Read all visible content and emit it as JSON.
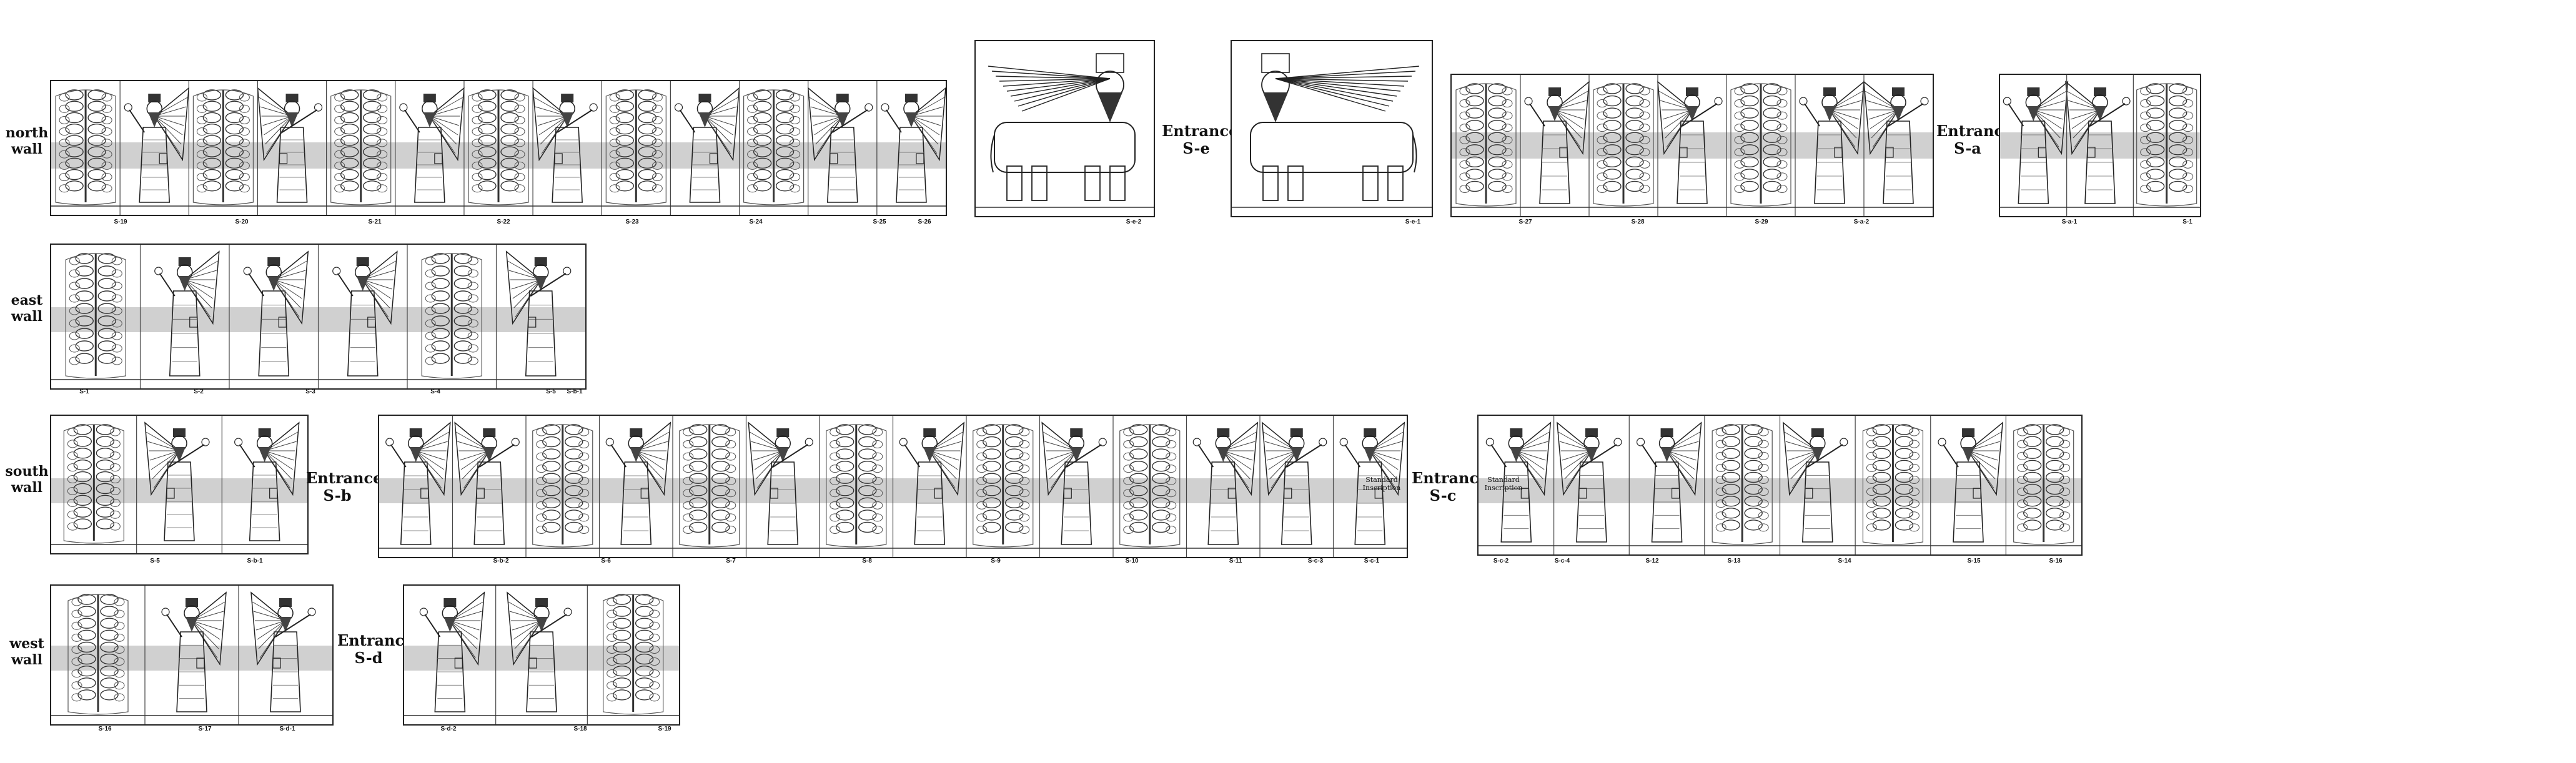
{
  "walls": [
    {
      "id": "north",
      "label": "north wall"
    },
    {
      "id": "east",
      "label": "east wall"
    },
    {
      "id": "south",
      "label": "south wall"
    },
    {
      "id": "west",
      "label": "west wall"
    }
  ],
  "entrances": [
    {
      "id": "e",
      "label": "Entrance S-e"
    },
    {
      "id": "a",
      "label": "Entrance S-a"
    },
    {
      "id": "b",
      "label": "Entrance S-b"
    },
    {
      "id": "c",
      "label": "Entrance S-c"
    },
    {
      "id": "d",
      "label": "Entrance S-d"
    }
  ],
  "inscriptions": {
    "left": "Standard Inscription",
    "right": "Standard Inscription"
  },
  "rows": {
    "north": [
      "S-19",
      "S-20",
      "S-21",
      "S-22",
      "S-23",
      "S-24",
      "S-25",
      "S-26",
      "S-e-2",
      "S-e-1",
      "S-27",
      "S-28",
      "S-29",
      "S-a-2",
      "S-a-1",
      "S-1"
    ],
    "east": [
      "S-1",
      "S-2",
      "S-3",
      "S-4",
      "S-5",
      "S-b-1"
    ],
    "south": [
      "S-5",
      "S-b-1",
      "S-b-2",
      "S-6",
      "S-7",
      "S-8",
      "S-9",
      "S-10",
      "S-11",
      "S-c-3",
      "S-c-1",
      "S-c-2",
      "S-c-4",
      "S-12",
      "S-13",
      "S-14",
      "S-15",
      "S-16"
    ],
    "west": [
      "S-16",
      "S-17",
      "S-d-1",
      "S-d-2",
      "S-18",
      "S-19"
    ]
  }
}
